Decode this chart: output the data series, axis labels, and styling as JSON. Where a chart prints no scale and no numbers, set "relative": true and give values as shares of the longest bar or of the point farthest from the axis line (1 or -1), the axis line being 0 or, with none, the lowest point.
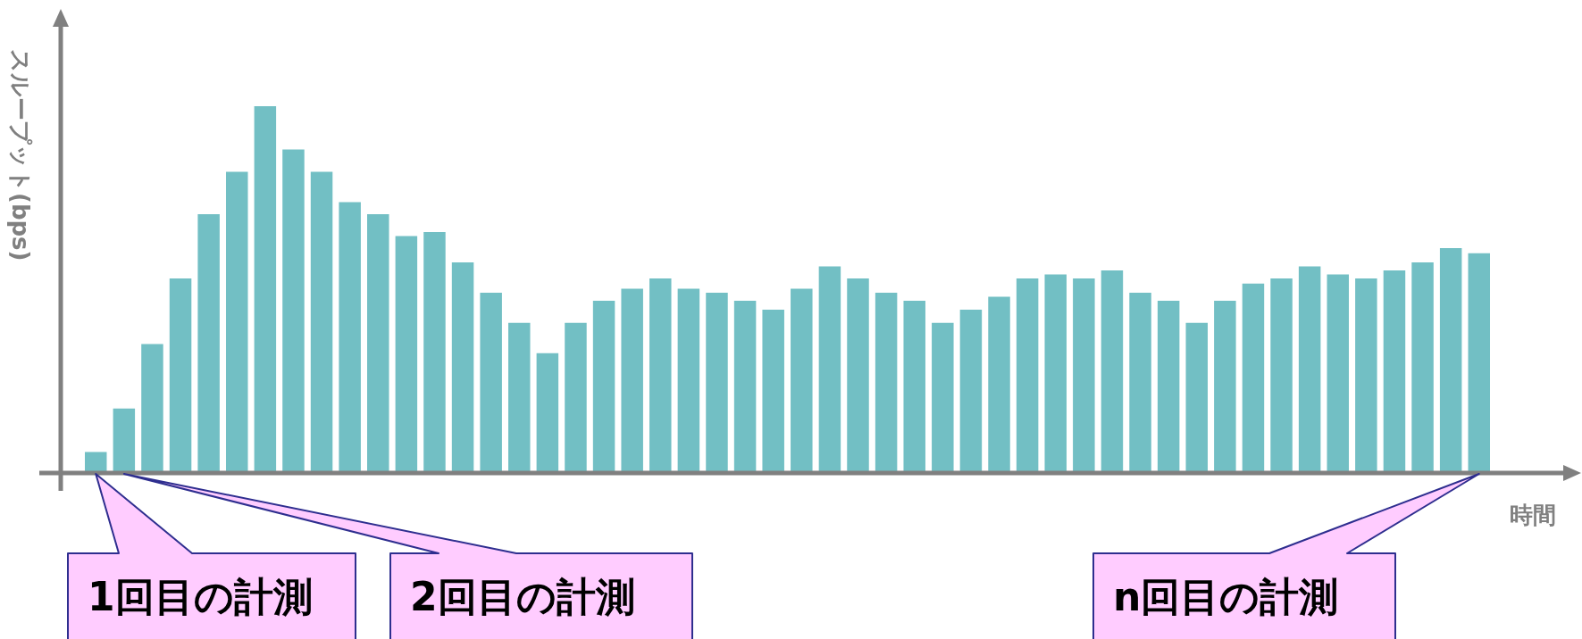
{
  "chart_data": {
    "type": "bar",
    "relative": true,
    "ylabel": "スループット(bps)",
    "xlabel": "時間",
    "color": "#72bfc4",
    "categories": [
      null,
      null,
      null,
      null,
      null,
      null,
      null,
      null,
      null,
      null,
      null,
      null,
      null,
      null,
      null,
      null,
      null,
      null,
      null,
      null,
      null,
      null,
      null,
      null,
      null,
      null,
      null,
      null,
      null,
      null,
      null,
      null,
      null,
      null,
      null,
      null,
      null,
      null,
      null,
      null,
      null,
      null,
      null,
      null,
      null,
      null,
      null,
      null,
      null,
      null
    ],
    "values": [
      0.055,
      0.174,
      0.35,
      0.529,
      0.705,
      0.821,
      1,
      0.882,
      0.821,
      0.738,
      0.705,
      0.645,
      0.656,
      0.573,
      0.49,
      0.408,
      0.325,
      0.408,
      0.468,
      0.501,
      0.529,
      0.501,
      0.49,
      0.468,
      0.444,
      0.501,
      0.562,
      0.529,
      0.49,
      0.468,
      0.408,
      0.444,
      0.479,
      0.529,
      0.54,
      0.529,
      0.551,
      0.49,
      0.468,
      0.408,
      0.468,
      0.515,
      0.529,
      0.562,
      0.54,
      0.529,
      0.551,
      0.573,
      0.612,
      0.598
    ],
    "annotations": [
      "1回目の計測",
      "2回目の計測",
      "n回目の計測"
    ]
  }
}
